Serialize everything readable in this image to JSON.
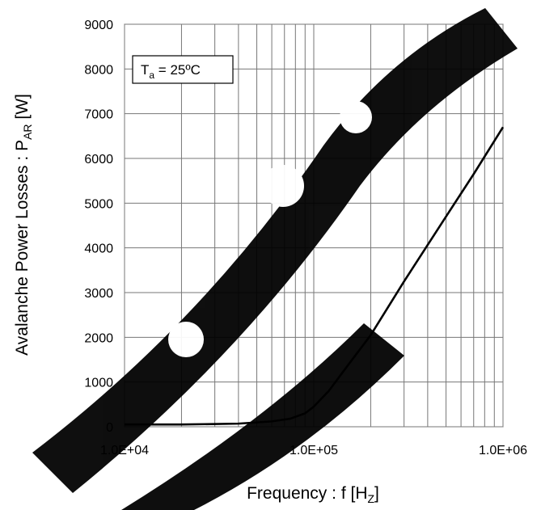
{
  "chart_data": {
    "type": "line",
    "xscale": "log",
    "xlim": [
      10000,
      1000000
    ],
    "ylim": [
      0,
      9000
    ],
    "grid": true,
    "legend": "none",
    "ylabel_main": "Avalanche Power Losses : P",
    "ylabel_sub": "AR",
    "ylabel_unit": " [W]",
    "xlabel_main": "Frequency : f [H",
    "xlabel_sub": "Z",
    "xlabel_end": "]",
    "annotation_main": "T",
    "annotation_sub": "a",
    "annotation_rest": " = 25ºC",
    "xticks": [
      {
        "value": 10000,
        "label": "1.0E+04"
      },
      {
        "value": 100000,
        "label": "1.0E+05"
      },
      {
        "value": 1000000,
        "label": "1.0E+06"
      }
    ],
    "yticks": [
      0,
      1000,
      2000,
      3000,
      4000,
      5000,
      6000,
      7000,
      8000,
      9000
    ],
    "series": [
      {
        "color": "#000000",
        "x": [
          10000,
          20000,
          40000,
          60000,
          75000,
          90000,
          100000,
          120000,
          150000,
          200000,
          300000,
          500000,
          700000,
          1000000
        ],
        "y": [
          50,
          50,
          70,
          120,
          180,
          300,
          450,
          800,
          1350,
          2050,
          3250,
          4700,
          5650,
          6700
        ]
      }
    ]
  }
}
